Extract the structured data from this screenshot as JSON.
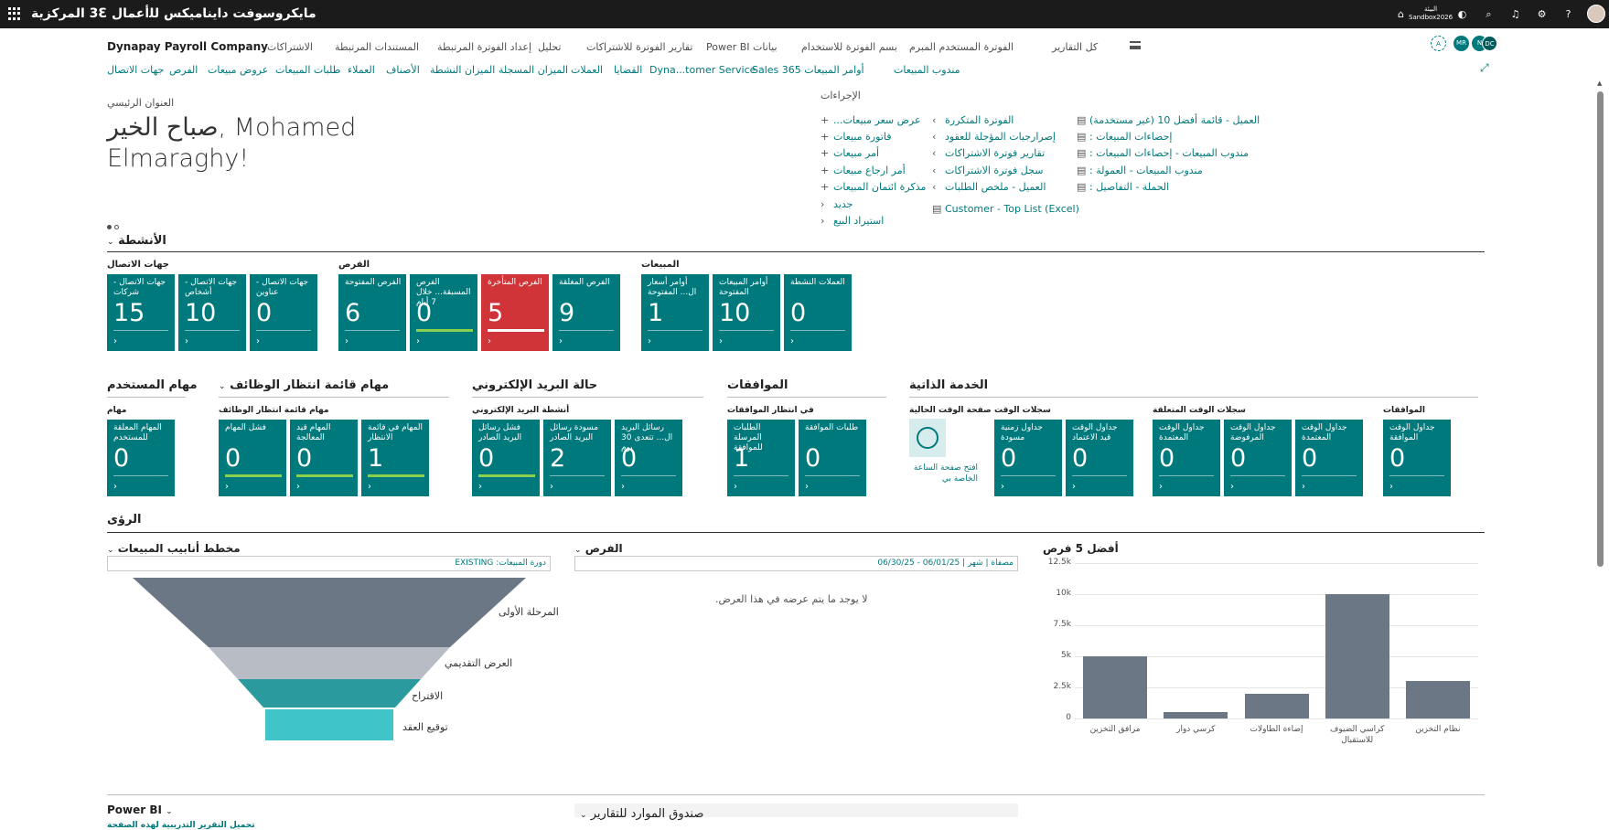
{
  "topbar": {
    "app_title": "مايكروسوفت دايناميكس ﻟﻠأعمال 3Ꜫ المركزية",
    "env_label": "البيئة",
    "env_name": "Sandbox2026"
  },
  "nav": {
    "company": "Dynapay Payroll Company",
    "menu": [
      "كل التقارير",
      "الفوترة المستخدم المبرم",
      "بيانات Power BI",
      "تقارير الفوترة للاشتراكات",
      "تحليل",
      "إعداد الفوترة المرتبطة",
      "المستندات المرتبطة",
      "الاشتراكات",
      "ﺑﺴﻢ الفوترة للاستخدام"
    ],
    "links": [
      "جهات الاتصال",
      "الفرص",
      "عروض مبيعات",
      "طلبات المبيعات",
      "العملاء",
      "الأصناف",
      "الميزان النشطة",
      "الميزان المسجلة",
      "العملات",
      "القضايا",
      "Dyna...tomer Service",
      "أوامر المبيعات 365 Sales",
      "مندوب المبيعات"
    ],
    "badges": [
      "A",
      "MR",
      "N",
      "DC"
    ]
  },
  "headline": {
    "label": "العنوان الرئيسي",
    "greeting": "صباح الخير, Mohamed Elmaraghy!"
  },
  "actions": {
    "label": "الإجراءات",
    "col1": [
      "عرض سعر مبيعات...",
      "فاتورة مبيعات",
      "أمر مبيعات",
      "أمر ارجاع مبيعات",
      "مذكرة ائتمان المبيعات",
      "جديد",
      "استيراد البيع"
    ],
    "col2": [
      "الفوترة المتكررة",
      "إصرارجيات المؤجلة للعقود",
      "تقارير فوترة الاشتراكات",
      "سجل فوترة الاشتراكات",
      "العميل - ملخص الطلبات",
      "Customer - Top List (Excel)"
    ],
    "col3": [
      "العميل - قائمة أفضل 10 (غير مستخدمة)",
      "إحصاءات المبيعات :",
      "مندوب المبيعات - إحصاءات المبيعات :",
      "مندوب المبيعات - العمولة :",
      "الحملة - التفاصيل :"
    ]
  },
  "activities": {
    "title": "الأنشطة",
    "groups": {
      "contacts": "جهات الاتصال",
      "opps": "الفرص",
      "sales": "المبيعات"
    },
    "tiles_row1": [
      {
        "title": "جهات الاتصال - شركات",
        "value": "15"
      },
      {
        "title": "جهات الاتصال - أشخاص",
        "value": "10"
      },
      {
        "title": "جهات الاتصال - عناوين",
        "value": "0"
      },
      {
        "title": "الفرص المفتوحة",
        "value": "6"
      },
      {
        "title": "الفرص المسبقة... خلال 7 أيام",
        "value": "0"
      },
      {
        "title": "الفرص المتأخرة",
        "value": "5"
      },
      {
        "title": "الفرص المغلقة",
        "value": "9"
      },
      {
        "title": "أوامر أسعار ال... المفتوحة",
        "value": "1"
      },
      {
        "title": "أوامر المبيعات المفتوحة",
        "value": "10"
      },
      {
        "title": "العملات النشطة",
        "value": "0"
      }
    ],
    "row2_sections": {
      "user_tasks": "مهام المستخدم",
      "job_queue": "مهام قائمة انتظار الوظائف",
      "email_status": "حالة البريد الإلكتروني",
      "approvals": "الموافقات",
      "self_service": "الخدمة الذاتية"
    },
    "row2_subgroups": {
      "tasks": "مهام",
      "job_queue_tasks": "مهام قائمة انتظار الوظائف",
      "email_activities": "أنشطة البريد الإلكتروني",
      "pending_approvals": "في انتظار الموافقات",
      "current_time_page": "صفحة الوقت الحالية",
      "time_sheets": "سجلات الوقت",
      "pending_time_sheets": "سجلات الوقت المتعلقة",
      "approvals": "الموافقات"
    },
    "tiles_row2": [
      {
        "title": "المهام المعلقة للمستخدم",
        "value": "0"
      },
      {
        "title": "فشل المهام",
        "value": "0"
      },
      {
        "title": "المهام قيد المعالجة",
        "value": "0"
      },
      {
        "title": "المهام في قائمة الانتظار",
        "value": "1"
      },
      {
        "title": "فشل رسائل البريد الصادر",
        "value": "0"
      },
      {
        "title": "مسودة رسائل البريد الصادر",
        "value": "2"
      },
      {
        "title": "رسائل البريد ال... تتعدى 30 يوم",
        "value": "0"
      },
      {
        "title": "الطلبات المرسلة للموافقة",
        "value": "1"
      },
      {
        "title": "طلبات الموافقة",
        "value": "0"
      },
      {
        "title": "جداول زمنية مسودة",
        "value": "0"
      },
      {
        "title": "جداول الوقت قيد الاعتماد",
        "value": "0"
      },
      {
        "title": "جداول الوقت المعتمدة",
        "value": "0"
      },
      {
        "title": "جداول الوقت المرفوضة",
        "value": "0"
      },
      {
        "title": "جداول الوقت المعتمدة",
        "value": "0"
      },
      {
        "title": "جداول الوقت الموافقة",
        "value": "0"
      }
    ],
    "clock_link": "افتح صفحة الساعة الخاصة بي"
  },
  "insights": {
    "title": "الرؤى",
    "pipeline": {
      "title": "مخطط أنابيب المبيعات",
      "filter": "دورة المبيعات: EXISTING",
      "stages": [
        "المرحلة الأولى",
        "العرض التقديمي",
        "الاقتراح",
        "توقيع العقد"
      ]
    },
    "opportunities": {
      "title": "الفرص",
      "filter": "مصفاة | شهر | 06/01/25 - 06/30/25",
      "empty": "لا يوجد ما يتم عرضه في هذا العرض."
    },
    "top5": {
      "title": "أفضل 5 فرص"
    },
    "powerbi": {
      "title": "Power BI",
      "link": "تحميل التقرير التدريبية لهذه الصفحة"
    },
    "reports_box": {
      "title": "صندوق الموارد للتقارير"
    }
  },
  "chart_data": {
    "type": "bar",
    "title": "أفضل 5 فرص",
    "categories": [
      "مرافق التخزين",
      "كرسي دوار",
      "إضاءة الطاولات",
      "كراسي الضيوف للاستقبال",
      "نظام التخزين"
    ],
    "values": [
      5000,
      500,
      2000,
      10000,
      3000
    ],
    "ylim": [
      0,
      12500
    ],
    "yticks": [
      "0",
      "2.5k",
      "5k",
      "7.5k",
      "10k",
      "12.5k"
    ],
    "color": "#6b7785"
  }
}
